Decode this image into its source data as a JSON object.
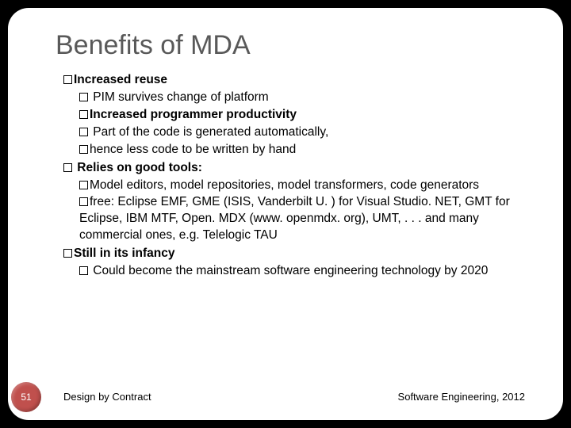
{
  "slide": {
    "title": "Benefits of MDA",
    "b1": {
      "head": "Increased reuse",
      "sub1": " PIM survives change of platform"
    },
    "b2": {
      "head": "Increased programmer productivity",
      "sub1": " Part of the code is generated automatically,",
      "sub2": "hence less code to be written by hand"
    },
    "b3": {
      "head": " Relies on good tools:",
      "sub1": "Model editors, model repositories, model transformers, code generators",
      "sub2": "free:  Eclipse EMF, GME (ISIS, Vanderbilt U. ) for Visual Studio. NET, GMT for Eclipse, IBM MTF, Open. MDX (www. openmdx. org), UMT, . . . and many commercial ones, e.g. Telelogic TAU"
    },
    "b4": {
      "head": "Still in its infancy",
      "sub1": " Could become the mainstream software engineering technology by 2020"
    },
    "page_number": "51",
    "footer_left": "Design by Contract",
    "footer_right": "Software Engineering, 2012"
  },
  "colors": {
    "background": "#000000",
    "slide_bg": "#ffffff",
    "title": "#595959",
    "accent_circle": "#c0504d"
  }
}
